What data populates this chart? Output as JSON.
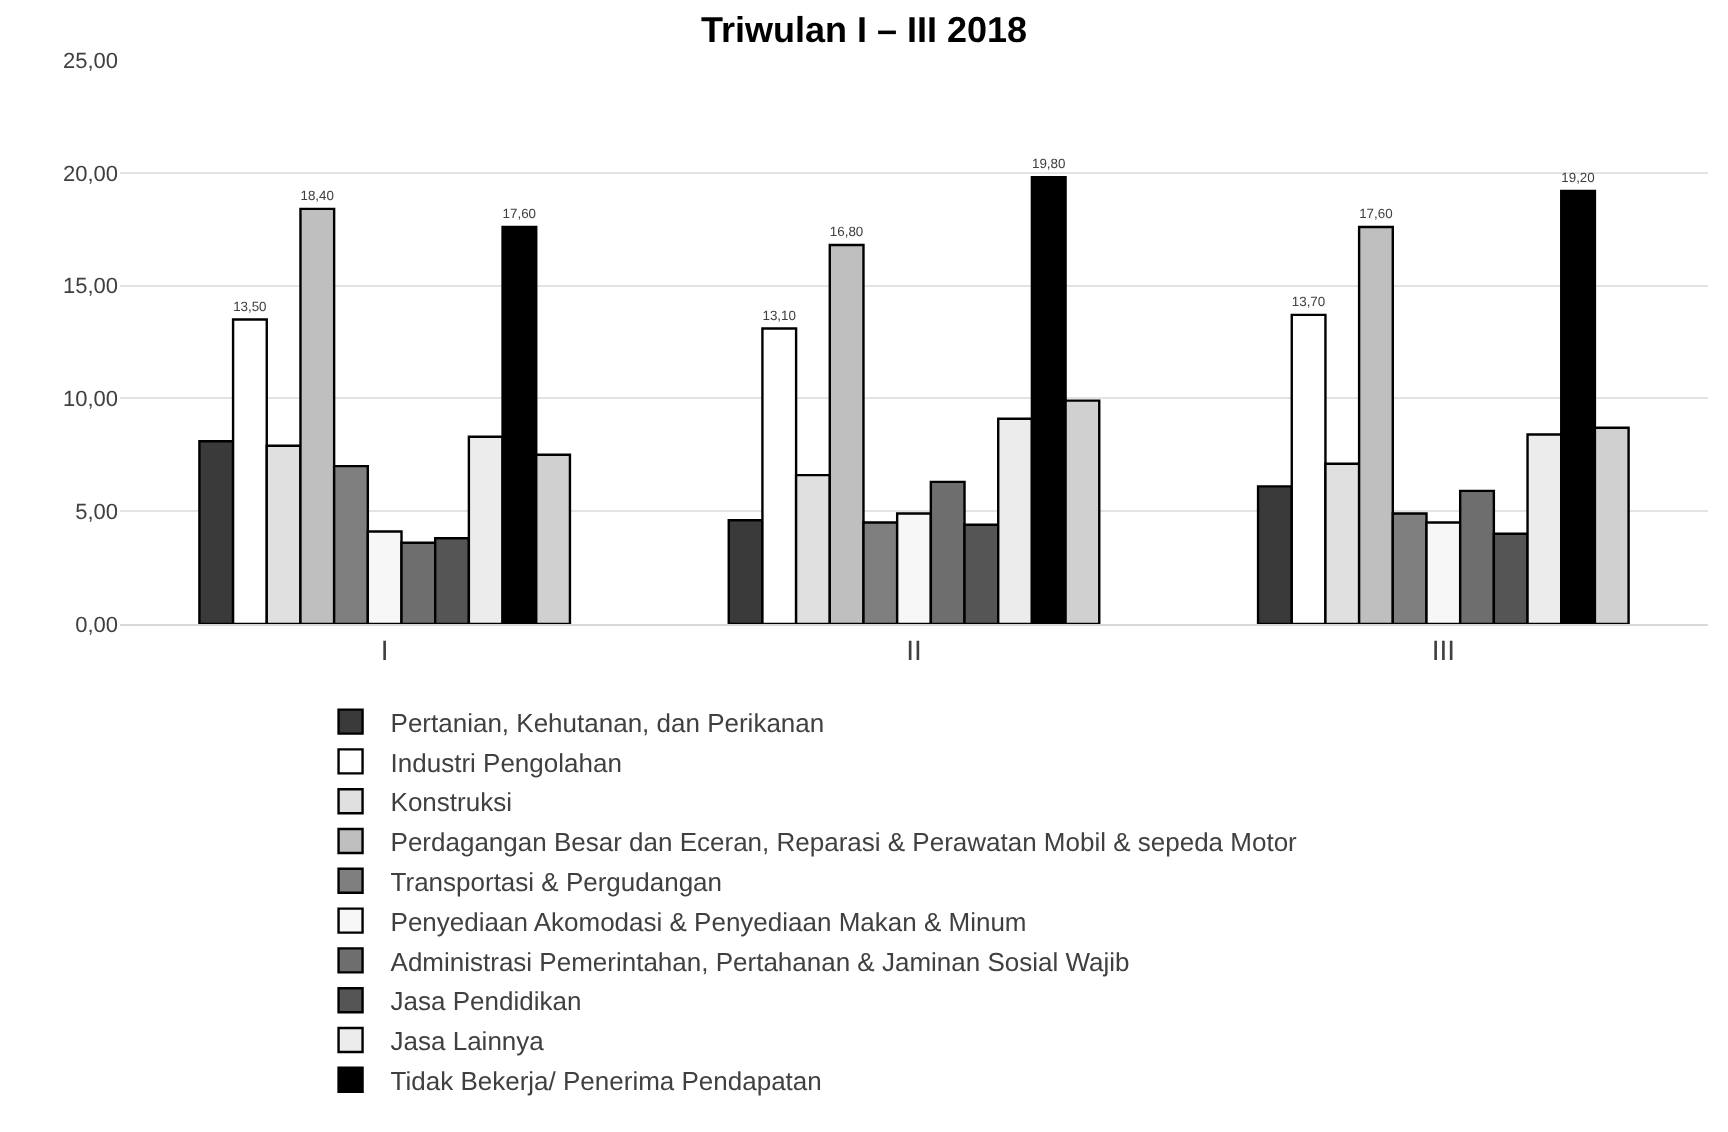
{
  "chart_data": {
    "type": "bar",
    "title": "Triwulan I – III 2018",
    "categories": [
      "I",
      "II",
      "III"
    ],
    "series": [
      {
        "name": "Pertanian, Kehutanan, dan Perikanan",
        "color": "#3a3a3a",
        "values": [
          8.1,
          4.6,
          6.1
        ]
      },
      {
        "name": "Industri Pengolahan",
        "color": "#ffffff",
        "values": [
          13.5,
          13.1,
          13.7
        ],
        "value_labels": [
          "13,50",
          "13,10",
          "13,70"
        ]
      },
      {
        "name": "Konstruksi",
        "color": "#e0e0e0",
        "values": [
          7.9,
          6.6,
          7.1
        ]
      },
      {
        "name": "Perdagangan Besar dan Eceran, Reparasi & Perawatan Mobil & sepeda Motor",
        "color": "#bfbfbf",
        "values": [
          18.4,
          16.8,
          17.6
        ],
        "value_labels": [
          "18,40",
          "16,80",
          "17,60"
        ]
      },
      {
        "name": "Transportasi & Pergudangan",
        "color": "#7f7f7f",
        "values": [
          7.0,
          4.5,
          4.9
        ]
      },
      {
        "name": "Penyediaan Akomodasi & Penyediaan Makan & Minum",
        "color": "#f7f7f7",
        "values": [
          4.1,
          4.9,
          4.5
        ]
      },
      {
        "name": "Administrasi Pemerintahan, Pertahanan & Jaminan Sosial Wajib",
        "color": "#6e6e6e",
        "values": [
          3.6,
          6.3,
          5.9
        ]
      },
      {
        "name": "Jasa Pendidikan",
        "color": "#555555",
        "values": [
          3.8,
          4.4,
          4.0
        ]
      },
      {
        "name": "Jasa Lainnya",
        "color": "#ececec",
        "values": [
          8.3,
          9.1,
          8.4
        ]
      },
      {
        "name": "Tidak Bekerja/ Penerima Pendapatan",
        "color": "#000000",
        "values": [
          17.6,
          19.8,
          19.2
        ],
        "value_labels": [
          "17,60",
          "19,80",
          "19,20"
        ]
      },
      {
        "color": "#d0d0d0",
        "values": [
          7.5,
          9.9,
          8.7
        ]
      }
    ],
    "ylim": [
      0,
      25
    ],
    "yticks": [
      {
        "value": 0,
        "label": "0,00"
      },
      {
        "value": 5,
        "label": "5,00"
      },
      {
        "value": 10,
        "label": "10,00"
      },
      {
        "value": 15,
        "label": "15,00"
      },
      {
        "value": 20,
        "label": "20,00"
      },
      {
        "value": 25,
        "label": "25,00"
      }
    ],
    "grid": "y",
    "legend": "bottom"
  }
}
